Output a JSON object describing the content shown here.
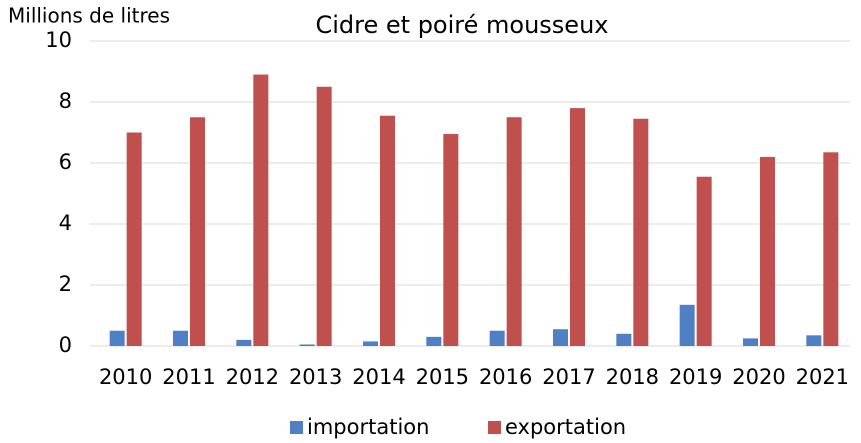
{
  "chart_data": {
    "type": "bar",
    "title": "Cidre et poiré mousseux",
    "y_label": "Millions de litres",
    "categories": [
      "2010",
      "2011",
      "2012",
      "2013",
      "2014",
      "2015",
      "2016",
      "2017",
      "2018",
      "2019",
      "2020",
      "2021"
    ],
    "series": [
      {
        "name": "importation",
        "color": "#4f7fc4",
        "values": [
          0.5,
          0.5,
          0.2,
          0.05,
          0.15,
          0.3,
          0.5,
          0.55,
          0.4,
          1.35,
          0.25,
          0.35
        ]
      },
      {
        "name": "exportation",
        "color": "#c0504d",
        "values": [
          7.0,
          7.5,
          8.9,
          8.5,
          7.55,
          6.95,
          7.5,
          7.8,
          7.45,
          5.55,
          6.2,
          6.35
        ]
      }
    ],
    "ylim": [
      0,
      10
    ],
    "yticks": [
      0,
      2,
      4,
      6,
      8,
      10
    ],
    "grid": true,
    "legend": "bottom"
  }
}
